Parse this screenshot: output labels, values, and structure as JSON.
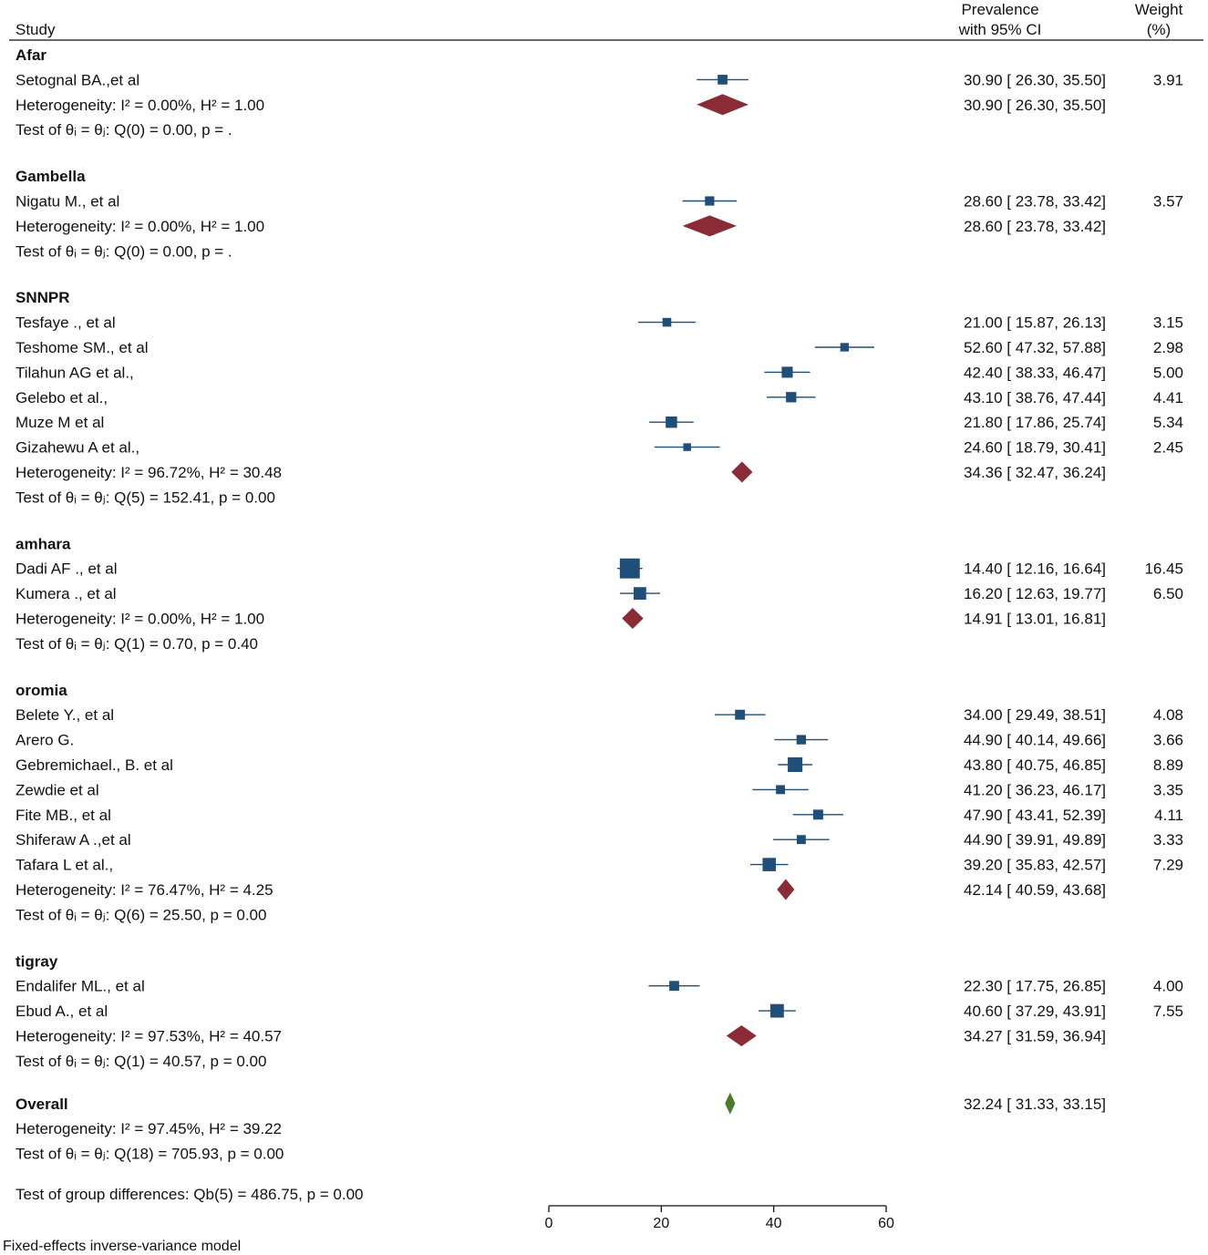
{
  "header": {
    "study": "Study",
    "prevalence_line1": "Prevalence",
    "prevalence_line2": "with 95% CI",
    "weight_line1": "Weight",
    "weight_line2": "(%)"
  },
  "colors": {
    "study_box": "#1f4e79",
    "subgroup_diamond": "#8b2b35",
    "overall_diamond": "#4a7a2a",
    "text": "#111111"
  },
  "chart_data": {
    "type": "forest",
    "xlim": [
      0,
      60
    ],
    "xticks": [
      0,
      20,
      40,
      60
    ],
    "groups": [
      {
        "name": "Afar",
        "studies": [
          {
            "label": "Setognal BA.,et al",
            "est": 30.9,
            "lo": 26.3,
            "hi": 35.5,
            "ci": "30.90 [ 26.30,  35.50]",
            "weight": "3.91",
            "w": 3.91
          }
        ],
        "subtotal": {
          "est": 30.9,
          "lo": 26.3,
          "hi": 35.5,
          "ci": "30.90 [ 26.30,  35.50]"
        },
        "heterogeneity": "Heterogeneity: I² = 0.00%, H² = 1.00",
        "test": "Test of θᵢ = θⱼ: Q(0) = 0.00, p = ."
      },
      {
        "name": "Gambella",
        "studies": [
          {
            "label": "Nigatu M., et al",
            "est": 28.6,
            "lo": 23.78,
            "hi": 33.42,
            "ci": "28.60 [ 23.78,  33.42]",
            "weight": "3.57",
            "w": 3.57
          }
        ],
        "subtotal": {
          "est": 28.6,
          "lo": 23.78,
          "hi": 33.42,
          "ci": "28.60 [ 23.78,  33.42]"
        },
        "heterogeneity": "Heterogeneity: I² = 0.00%, H² = 1.00",
        "test": "Test of θᵢ = θⱼ: Q(0) = 0.00, p = ."
      },
      {
        "name": "SNNPR",
        "studies": [
          {
            "label": "Tesfaye ., et al",
            "est": 21.0,
            "lo": 15.87,
            "hi": 26.13,
            "ci": "21.00 [ 15.87,  26.13]",
            "weight": "3.15",
            "w": 3.15
          },
          {
            "label": "Teshome SM., et al",
            "est": 52.6,
            "lo": 47.32,
            "hi": 57.88,
            "ci": "52.60 [ 47.32,  57.88]",
            "weight": "2.98",
            "w": 2.98
          },
          {
            "label": "Tilahun AG et al.,",
            "est": 42.4,
            "lo": 38.33,
            "hi": 46.47,
            "ci": "42.40 [ 38.33,  46.47]",
            "weight": "5.00",
            "w": 5.0
          },
          {
            "label": "Gelebo et al.,",
            "est": 43.1,
            "lo": 38.76,
            "hi": 47.44,
            "ci": "43.10 [ 38.76,  47.44]",
            "weight": "4.41",
            "w": 4.41
          },
          {
            "label": "Muze M et al",
            "est": 21.8,
            "lo": 17.86,
            "hi": 25.74,
            "ci": "21.80 [ 17.86,  25.74]",
            "weight": "5.34",
            "w": 5.34
          },
          {
            "label": "Gizahewu A et al.,",
            "est": 24.6,
            "lo": 18.79,
            "hi": 30.41,
            "ci": "24.60 [ 18.79,  30.41]",
            "weight": "2.45",
            "w": 2.45
          }
        ],
        "subtotal": {
          "est": 34.36,
          "lo": 32.47,
          "hi": 36.24,
          "ci": "34.36 [ 32.47,  36.24]"
        },
        "heterogeneity": "Heterogeneity: I² = 96.72%, H² = 30.48",
        "test": "Test of θᵢ = θⱼ: Q(5) = 152.41, p = 0.00"
      },
      {
        "name": "amhara",
        "studies": [
          {
            "label": "Dadi AF ., et al",
            "est": 14.4,
            "lo": 12.16,
            "hi": 16.64,
            "ci": "14.40 [ 12.16,  16.64]",
            "weight": "16.45",
            "w": 16.45
          },
          {
            "label": "Kumera ., et al",
            "est": 16.2,
            "lo": 12.63,
            "hi": 19.77,
            "ci": "16.20 [ 12.63,  19.77]",
            "weight": "6.50",
            "w": 6.5
          }
        ],
        "subtotal": {
          "est": 14.91,
          "lo": 13.01,
          "hi": 16.81,
          "ci": "14.91 [ 13.01,  16.81]"
        },
        "heterogeneity": "Heterogeneity: I² = 0.00%, H² = 1.00",
        "test": "Test of θᵢ = θⱼ: Q(1) = 0.70, p = 0.40"
      },
      {
        "name": "oromia",
        "studies": [
          {
            "label": "Belete Y., et al",
            "est": 34.0,
            "lo": 29.49,
            "hi": 38.51,
            "ci": "34.00 [ 29.49,  38.51]",
            "weight": "4.08",
            "w": 4.08
          },
          {
            "label": "Arero G.",
            "est": 44.9,
            "lo": 40.14,
            "hi": 49.66,
            "ci": "44.90 [ 40.14,  49.66]",
            "weight": "3.66",
            "w": 3.66
          },
          {
            "label": "Gebremichael., B. et al",
            "est": 43.8,
            "lo": 40.75,
            "hi": 46.85,
            "ci": "43.80 [ 40.75,  46.85]",
            "weight": "8.89",
            "w": 8.89
          },
          {
            "label": "Zewdie et al",
            "est": 41.2,
            "lo": 36.23,
            "hi": 46.17,
            "ci": "41.20 [ 36.23,  46.17]",
            "weight": "3.35",
            "w": 3.35
          },
          {
            "label": "Fite MB.,  et al",
            "est": 47.9,
            "lo": 43.41,
            "hi": 52.39,
            "ci": "47.90 [ 43.41,  52.39]",
            "weight": "4.11",
            "w": 4.11
          },
          {
            "label": "Shiferaw A .,et al",
            "est": 44.9,
            "lo": 39.91,
            "hi": 49.89,
            "ci": "44.90 [ 39.91,  49.89]",
            "weight": "3.33",
            "w": 3.33
          },
          {
            "label": "Tafara L et al.,",
            "est": 39.2,
            "lo": 35.83,
            "hi": 42.57,
            "ci": "39.20 [ 35.83,  42.57]",
            "weight": "7.29",
            "w": 7.29
          }
        ],
        "subtotal": {
          "est": 42.14,
          "lo": 40.59,
          "hi": 43.68,
          "ci": "42.14 [ 40.59,  43.68]"
        },
        "heterogeneity": "Heterogeneity: I² = 76.47%, H² = 4.25",
        "test": "Test of θᵢ = θⱼ: Q(6) = 25.50, p = 0.00"
      },
      {
        "name": "tigray",
        "studies": [
          {
            "label": "Endalifer ML., et al",
            "est": 22.3,
            "lo": 17.75,
            "hi": 26.85,
            "ci": "22.30 [ 17.75,  26.85]",
            "weight": "4.00",
            "w": 4.0
          },
          {
            "label": "Ebud A., et al",
            "est": 40.6,
            "lo": 37.29,
            "hi": 43.91,
            "ci": "40.60 [ 37.29,  43.91]",
            "weight": "7.55",
            "w": 7.55
          }
        ],
        "subtotal": {
          "est": 34.27,
          "lo": 31.59,
          "hi": 36.94,
          "ci": "34.27 [ 31.59,  36.94]"
        },
        "heterogeneity": "Heterogeneity: I² = 97.53%, H² = 40.57",
        "test": "Test of θᵢ = θⱼ: Q(1) = 40.57, p = 0.00"
      }
    ],
    "overall": {
      "label": "Overall",
      "est": 32.24,
      "lo": 31.33,
      "hi": 33.15,
      "ci": "32.24 [ 31.33,  33.15]",
      "heterogeneity": "Heterogeneity: I² = 97.45%, H² = 39.22",
      "test": "Test of θᵢ = θⱼ: Q(18) = 705.93, p = 0.00"
    },
    "group_difference_test": "Test of group differences: Qb(5) = 486.75, p = 0.00",
    "model_note": "Fixed-effects inverse-variance model"
  }
}
